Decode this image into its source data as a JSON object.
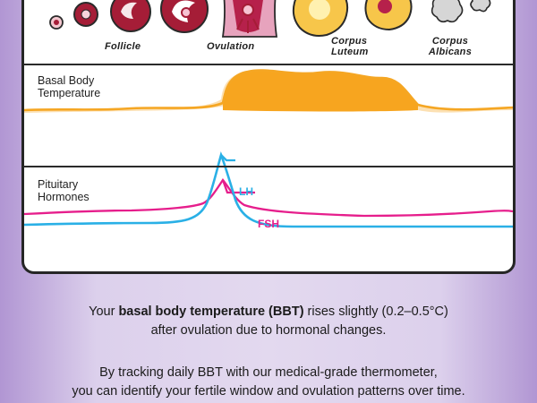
{
  "stages": {
    "follicle": "Follicle",
    "ovulation": "Ovulation",
    "corpus_luteum": [
      "Corpus",
      "Luteum"
    ],
    "corpus_albicans": [
      "Corpus",
      "Albicans"
    ]
  },
  "bbt": {
    "label": [
      "Basal Body",
      "Temperature"
    ],
    "color": "#f5a623"
  },
  "hormones": {
    "label": [
      "Pituitary",
      "Hormones"
    ],
    "lh": {
      "name": "LH",
      "color": "#2ab0e6"
    },
    "fsh": {
      "name": "FSH",
      "color": "#e61e8c"
    }
  },
  "caption": {
    "line1_pre": "Your ",
    "line1_bold": "basal body temperature (BBT)",
    "line1_post": " rises slightly (0.2–0.5°C)",
    "line2": "after ovulation due to hormonal changes.",
    "line3": "By tracking daily BBT with our medical-grade thermometer,",
    "line4": "you can identify your fertile window and ovulation patterns over time."
  }
}
